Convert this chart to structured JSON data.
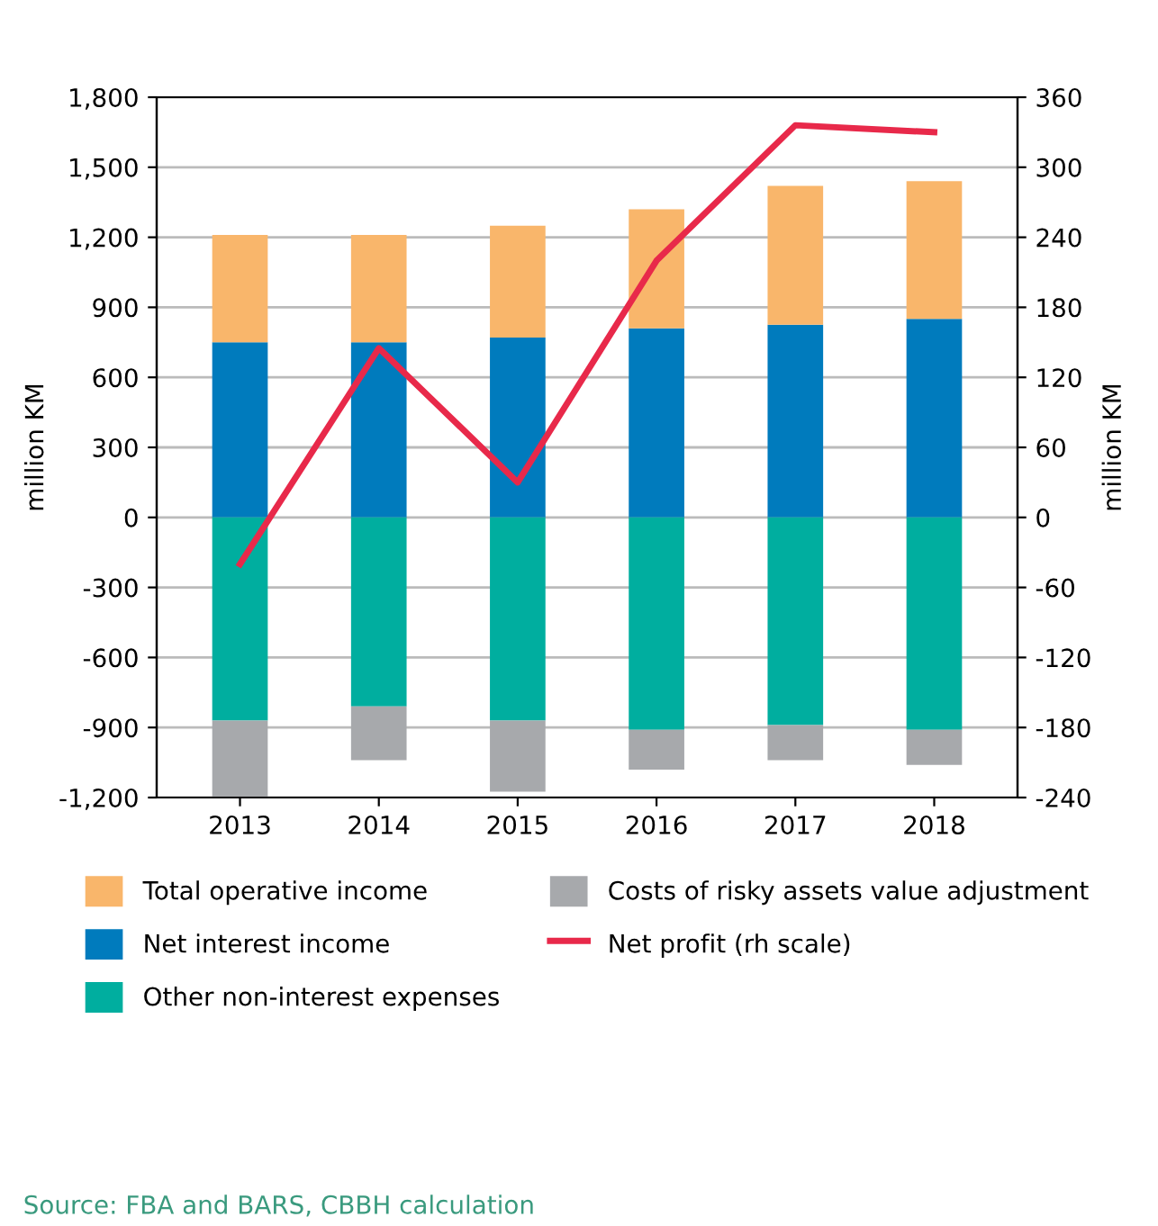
{
  "chart_data": {
    "type": "bar",
    "stacked": true,
    "categories": [
      "2013",
      "2014",
      "2015",
      "2016",
      "2017",
      "2018"
    ],
    "series": [
      {
        "name": "Net interest income",
        "color": "#007bbd",
        "values": [
          750,
          750,
          770,
          810,
          825,
          850
        ]
      },
      {
        "name": "Total operative income",
        "color": "#f9b66b",
        "values": [
          460,
          460,
          480,
          510,
          595,
          590
        ]
      },
      {
        "name": "Other non-interest expenses",
        "color": "#00ae9f",
        "values": [
          -870,
          -810,
          -870,
          -910,
          -890,
          -910
        ]
      },
      {
        "name": "Costs of risky assets value adjustment",
        "color": "#a7a9ac",
        "values": [
          -340,
          -230,
          -305,
          -170,
          -150,
          -150
        ]
      },
      {
        "name": "Net profit (rh scale)",
        "type": "line",
        "axis": "y2",
        "color": "#e8294a",
        "values": [
          -40,
          145,
          30,
          220,
          336,
          330
        ]
      }
    ],
    "ylabel": "million KM",
    "y2label": "million KM",
    "ylim": [
      -1200,
      1800
    ],
    "yticks": [
      {
        "value": -1200,
        "label": "-1,200"
      },
      -900,
      -600,
      -300,
      0,
      300,
      600,
      900,
      {
        "value": 1200,
        "label": "1,200"
      },
      {
        "value": 1500,
        "label": "1,500"
      },
      {
        "value": 1800,
        "label": "1,800"
      }
    ],
    "y2lim": [
      -240,
      360
    ],
    "y2ticks": [
      -240,
      -180,
      -120,
      -60,
      0,
      60,
      120,
      180,
      240,
      300,
      360
    ],
    "grid": "y",
    "legend": "bottom",
    "annotations": [
      "Source: FBA and BARS, CBBH calculation"
    ]
  }
}
